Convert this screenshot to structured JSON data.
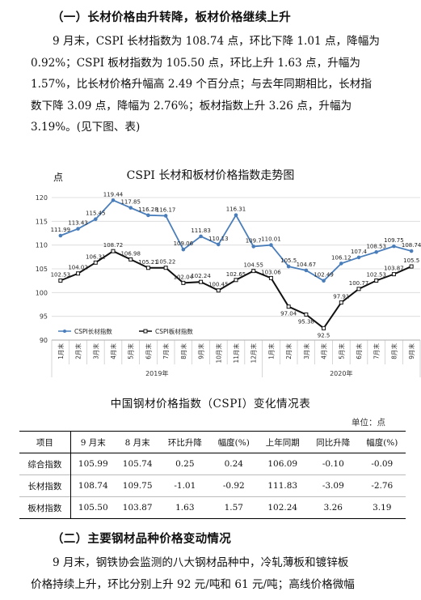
{
  "section1": {
    "heading": "（一）长材价格由升转降，板材价格继续上升",
    "lines": [
      "9 月末，CSPI 长材指数为 108.74 点，环比下降 1.01 点，降幅为",
      "0.92%；CSPI 板材指数为 105.50 点，环比上升 1.63 点，升幅为",
      "1.57%，比长材价格升幅高 2.49 个百分点；与去年同期相比，长材指",
      "数下降 3.09 点，降幅为 2.76%；板材指数上升 3.26 点，升幅为",
      "3.19%。(见下图、表)"
    ]
  },
  "chart_data": {
    "type": "line",
    "title": "CSPI 长材和板材价格指数走势图",
    "ylabel": "点",
    "ylim": [
      90,
      120
    ],
    "yticks": [
      90,
      95,
      100,
      105,
      110,
      115,
      120
    ],
    "grid": true,
    "legend": "bottom-left",
    "categories": [
      "1月末",
      "2月末",
      "3月末",
      "4月末",
      "5月末",
      "6月末",
      "7月末",
      "8月末",
      "9月末",
      "10月末",
      "11月末",
      "12月末",
      "1月末",
      "2月末",
      "3月末",
      "4月末",
      "5月末",
      "6月末",
      "7月末",
      "8月末",
      "9月末"
    ],
    "year_groups": [
      {
        "label": "2019年",
        "count": 12
      },
      {
        "label": "2020年",
        "count": 9
      }
    ],
    "series": [
      {
        "name": "CSPI长材指数",
        "color": "#4a7ebb",
        "values": [
          111.99,
          113.43,
          115.45,
          119.44,
          117.85,
          116.28,
          116.17,
          109.06,
          111.83,
          110.13,
          116.31,
          109.7,
          110.01,
          105.5,
          104.67,
          102.49,
          106.12,
          107.4,
          108.53,
          109.75,
          108.74
        ],
        "labels": [
          "111.99",
          "113.43",
          "115.45",
          "119.44",
          "117.85",
          "116.28",
          "116.17",
          "109.06",
          "111.83",
          "110.13",
          "116.31",
          "109.7",
          "110.01",
          "105.5",
          "104.67",
          "102.49",
          "106.12",
          "107.4",
          "108.53",
          "109.75",
          "108.74"
        ]
      },
      {
        "name": "CSPI板材指数",
        "color": "#111111",
        "values": [
          102.53,
          104.02,
          106.31,
          108.72,
          106.98,
          105.21,
          105.22,
          102.04,
          102.24,
          100.45,
          102.65,
          104.55,
          103.06,
          97.04,
          95.38,
          92.5,
          97.91,
          100.77,
          102.53,
          103.87,
          105.5
        ],
        "labels": [
          "102.53",
          "104.02",
          "106.31",
          "108.72",
          "106.98",
          "105.21",
          "105.22",
          "102.04",
          "102.24",
          "100.45",
          "102.65",
          "104.55",
          "103.06",
          "97.04",
          "95.38",
          "92.5",
          "97.91",
          "100.77",
          "102.53",
          "103.87",
          "105.5"
        ]
      }
    ]
  },
  "table": {
    "title": "中国钢材价格指数（CSPI）变化情况表",
    "unit": "单位：点",
    "headers": [
      "项目",
      "9 月末",
      "8 月末",
      "环比升降",
      "幅度(%)",
      "上年同期",
      "同比升降",
      "幅度(%)"
    ],
    "rows": [
      [
        "综合指数",
        "105.99",
        "105.74",
        "0.25",
        "0.24",
        "106.09",
        "-0.10",
        "-0.09"
      ],
      [
        "长材指数",
        "108.74",
        "109.75",
        "-1.01",
        "-0.92",
        "111.83",
        "-3.09",
        "-2.76"
      ],
      [
        "板材指数",
        "105.50",
        "103.87",
        "1.63",
        "1.57",
        "102.24",
        "3.26",
        "3.19"
      ]
    ]
  },
  "section2": {
    "heading": "（二）主要钢材品种价格变动情况",
    "lines": [
      "9 月末，钢铁协会监测的八大钢材品种中，冷轧薄板和镀锌板",
      "价格持续上升，环比分别上升 92 元/吨和 61 元/吨；高线价格微幅"
    ]
  }
}
